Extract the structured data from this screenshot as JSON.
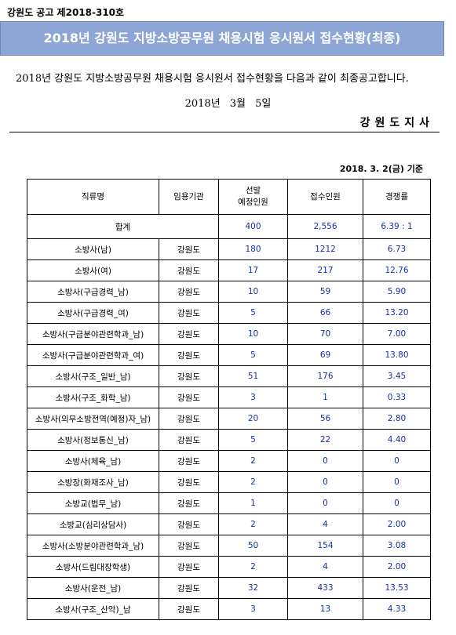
{
  "header": {
    "notice_number": "강원도 공고 제2018-310호",
    "title": "2018년 강원도 지방소방공무원 채용시험 응시원서 접수현황(최종)",
    "intro": "2018년 강원도 지방소방공무원 채용시험 응시원서 접수현황을 다음과 같이 최종공고합니다.",
    "date": "2018년 3월 5일",
    "issuer": "강원도지사",
    "title_band_color": "#8da6d6"
  },
  "table": {
    "basis_date": "2018. 3. 2(금) 기준",
    "columns": [
      "직류명",
      "임용기관",
      "선발\n예정인원",
      "접수인원",
      "경쟁률"
    ],
    "total": {
      "label": "합계",
      "planned": "400",
      "applicants": "2,556",
      "ratio": "6.39 : 1"
    },
    "rows": [
      {
        "name": "소방사(남)",
        "agency": "강원도",
        "planned": "180",
        "applicants": "1212",
        "ratio": "6.73"
      },
      {
        "name": "소방사(여)",
        "agency": "강원도",
        "planned": "17",
        "applicants": "217",
        "ratio": "12.76"
      },
      {
        "name": "소방사(구급경력_남)",
        "agency": "강원도",
        "planned": "10",
        "applicants": "59",
        "ratio": "5.90"
      },
      {
        "name": "소방사(구급경력_여)",
        "agency": "강원도",
        "planned": "5",
        "applicants": "66",
        "ratio": "13.20"
      },
      {
        "name": "소방사(구급분야관련학과_남)",
        "agency": "강원도",
        "planned": "10",
        "applicants": "70",
        "ratio": "7.00"
      },
      {
        "name": "소방사(구급분야관련학과_여)",
        "agency": "강원도",
        "planned": "5",
        "applicants": "69",
        "ratio": "13.80"
      },
      {
        "name": "소방사(구조_일반_남)",
        "agency": "강원도",
        "planned": "51",
        "applicants": "176",
        "ratio": "3.45"
      },
      {
        "name": "소방사(구조_화학_남)",
        "agency": "강원도",
        "planned": "3",
        "applicants": "1",
        "ratio": "0.33"
      },
      {
        "name": "소방사(의무소방전역(예정)자_남)",
        "agency": "강원도",
        "planned": "20",
        "applicants": "56",
        "ratio": "2.80"
      },
      {
        "name": "소방사(정보통신_남)",
        "agency": "강원도",
        "planned": "5",
        "applicants": "22",
        "ratio": "4.40"
      },
      {
        "name": "소방사(체육_남)",
        "agency": "강원도",
        "planned": "2",
        "applicants": "0",
        "ratio": "0"
      },
      {
        "name": "소방장(화재조사_남)",
        "agency": "강원도",
        "planned": "2",
        "applicants": "0",
        "ratio": "0"
      },
      {
        "name": "소방교(법무_남)",
        "agency": "강원도",
        "planned": "1",
        "applicants": "0",
        "ratio": "0"
      },
      {
        "name": "소방교(심리상담사)",
        "agency": "강원도",
        "planned": "2",
        "applicants": "4",
        "ratio": "2.00"
      },
      {
        "name": "소방사(소방분야관련학과_남)",
        "agency": "강원도",
        "planned": "50",
        "applicants": "154",
        "ratio": "3.08"
      },
      {
        "name": "소방사(드림대장학생)",
        "agency": "강원도",
        "planned": "2",
        "applicants": "4",
        "ratio": "2.00"
      },
      {
        "name": "소방사(운전_남)",
        "agency": "강원도",
        "planned": "32",
        "applicants": "433",
        "ratio": "13.53"
      },
      {
        "name": "소방사(구조_산악)_남",
        "agency": "강원도",
        "planned": "3",
        "applicants": "13",
        "ratio": "4.33"
      }
    ]
  }
}
